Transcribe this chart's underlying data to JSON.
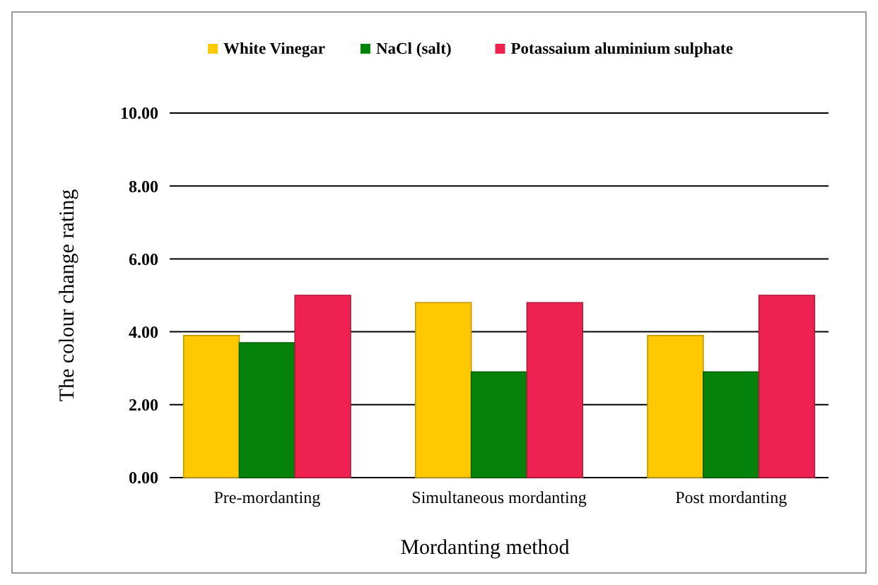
{
  "chart_data": {
    "type": "bar",
    "ylabel": "The colour change rating",
    "xlabel": "Mordanting  method",
    "categories": [
      "Pre-mordanting",
      "Simultaneous mordanting",
      "Post mordanting"
    ],
    "series": [
      {
        "name": "White Vinegar",
        "color": "#ffc800",
        "values": [
          3.9,
          4.8,
          3.9
        ]
      },
      {
        "name": "NaCl (salt)",
        "color": "#05820a",
        "values": [
          3.7,
          2.9,
          2.9
        ]
      },
      {
        "name": "Potassaium aluminium sulphate",
        "color": "#ee2250",
        "values": [
          5.0,
          4.8,
          5.0
        ]
      }
    ],
    "ylim": [
      0,
      10
    ],
    "yticks": [
      {
        "value": 0,
        "label": "0.00"
      },
      {
        "value": 2,
        "label": "2.00"
      },
      {
        "value": 4,
        "label": "4.00"
      },
      {
        "value": 6,
        "label": "6.00"
      },
      {
        "value": 8,
        "label": "8.00"
      },
      {
        "value": 10,
        "label": "10.00"
      }
    ],
    "grid": "y",
    "legend": "top"
  }
}
